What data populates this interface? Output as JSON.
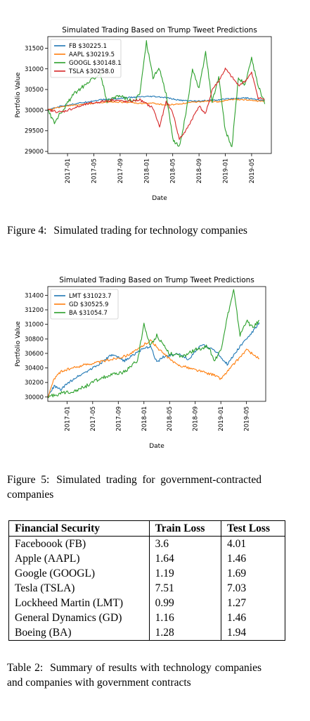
{
  "chart_data": [
    {
      "type": "line",
      "title": "Simulated Trading Based on Trump Tweet Predictions",
      "xlabel": "Date",
      "ylabel": "Portfolio Value",
      "x_ticks": [
        "2017-01",
        "2017-05",
        "2017-09",
        "2018-01",
        "2018-05",
        "2018-09",
        "2019-01",
        "2019-05"
      ],
      "y_ticks": [
        29000,
        29500,
        30000,
        30500,
        31000,
        31500
      ],
      "xlim": [
        "2016-10",
        "2019-08"
      ],
      "ylim": [
        28950,
        31780
      ],
      "legend_position": "top-left",
      "series": [
        {
          "name": "FB $30225.1",
          "color": "#1f77b4",
          "x": [
            "2016-10",
            "2016-12",
            "2017-02",
            "2017-04",
            "2017-06",
            "2017-08",
            "2017-10",
            "2017-12",
            "2018-02",
            "2018-04",
            "2018-06",
            "2018-08",
            "2018-10",
            "2018-12",
            "2019-02",
            "2019-04",
            "2019-06",
            "2019-07"
          ],
          "y": [
            30000,
            30100,
            30150,
            30200,
            30250,
            30270,
            30300,
            30320,
            30330,
            30300,
            30240,
            30220,
            30230,
            30250,
            30280,
            30300,
            30250,
            30225
          ]
        },
        {
          "name": "AAPL $30219.5",
          "color": "#ff7f0e",
          "x": [
            "2016-10",
            "2016-12",
            "2017-02",
            "2017-04",
            "2017-06",
            "2017-08",
            "2017-10",
            "2017-12",
            "2018-02",
            "2018-04",
            "2018-06",
            "2018-08",
            "2018-10",
            "2018-12",
            "2019-02",
            "2019-04",
            "2019-06",
            "2019-07"
          ],
          "y": [
            30000,
            30080,
            30120,
            30150,
            30180,
            30200,
            30190,
            30160,
            30170,
            30120,
            30150,
            30190,
            30220,
            30200,
            30260,
            30250,
            30220,
            30220
          ]
        },
        {
          "name": "GOOGL $30148.1",
          "color": "#2ca02c",
          "x": [
            "2016-10",
            "2016-11",
            "2016-12",
            "2017-02",
            "2017-04",
            "2017-06",
            "2017-07",
            "2017-09",
            "2017-11",
            "2017-12",
            "2018-01",
            "2018-02",
            "2018-03",
            "2018-04",
            "2018-05",
            "2018-06",
            "2018-07",
            "2018-08",
            "2018-09",
            "2018-10",
            "2018-11",
            "2018-12",
            "2019-01",
            "2019-02",
            "2019-03",
            "2019-04",
            "2019-05",
            "2019-06",
            "2019-07"
          ],
          "y": [
            30000,
            29700,
            29950,
            30400,
            30650,
            30900,
            30200,
            30350,
            30200,
            30400,
            31650,
            30800,
            31000,
            30400,
            29300,
            29100,
            29900,
            31000,
            30500,
            31400,
            30200,
            30800,
            29500,
            29100,
            30800,
            30600,
            31250,
            30600,
            30150
          ]
        },
        {
          "name": "TSLA $30258.0",
          "color": "#d62728",
          "x": [
            "2016-10",
            "2016-12",
            "2017-02",
            "2017-04",
            "2017-06",
            "2017-08",
            "2017-10",
            "2017-12",
            "2018-02",
            "2018-03",
            "2018-04",
            "2018-05",
            "2018-06",
            "2018-07",
            "2018-08",
            "2018-09",
            "2018-10",
            "2018-11",
            "2018-12",
            "2019-01",
            "2019-02",
            "2019-03",
            "2019-04",
            "2019-05",
            "2019-06",
            "2019-07"
          ],
          "y": [
            30000,
            29950,
            30050,
            30150,
            30200,
            30250,
            30200,
            30250,
            30050,
            29600,
            30200,
            29950,
            29300,
            29500,
            29800,
            30100,
            29900,
            30500,
            30700,
            31000,
            30800,
            30600,
            30700,
            30900,
            30300,
            30258
          ]
        }
      ]
    },
    {
      "type": "line",
      "title": "Simulated Trading Based on Trump Tweet Predictions",
      "xlabel": "Date",
      "ylabel": "Portfolio Value",
      "x_ticks": [
        "2017-01",
        "2017-05",
        "2017-09",
        "2018-01",
        "2018-05",
        "2018-09",
        "2019-01",
        "2019-05"
      ],
      "y_ticks": [
        30000,
        30200,
        30400,
        30600,
        30800,
        31000,
        31200,
        31400
      ],
      "xlim": [
        "2016-10",
        "2019-08"
      ],
      "ylim": [
        29940,
        31520
      ],
      "legend_position": "top-left",
      "series": [
        {
          "name": "LMT $31023.7",
          "color": "#1f77b4",
          "x": [
            "2016-10",
            "2016-11",
            "2016-12",
            "2017-02",
            "2017-04",
            "2017-06",
            "2017-08",
            "2017-10",
            "2017-12",
            "2018-02",
            "2018-03",
            "2018-04",
            "2018-06",
            "2018-08",
            "2018-10",
            "2018-12",
            "2019-02",
            "2019-04",
            "2019-06",
            "2019-07"
          ],
          "y": [
            30000,
            30150,
            30100,
            30250,
            30350,
            30450,
            30580,
            30500,
            30620,
            30700,
            30480,
            30550,
            30600,
            30520,
            30720,
            30650,
            30450,
            30700,
            30900,
            31024
          ]
        },
        {
          "name": "GD $30525.9",
          "color": "#ff7f0e",
          "x": [
            "2016-10",
            "2016-11",
            "2016-12",
            "2017-02",
            "2017-04",
            "2017-06",
            "2017-08",
            "2017-10",
            "2017-12",
            "2018-01",
            "2018-02",
            "2018-04",
            "2018-06",
            "2018-08",
            "2018-10",
            "2018-12",
            "2019-01",
            "2019-03",
            "2019-05",
            "2019-07"
          ],
          "y": [
            30000,
            30250,
            30350,
            30400,
            30450,
            30480,
            30520,
            30560,
            30650,
            30720,
            30780,
            30600,
            30450,
            30400,
            30350,
            30300,
            30250,
            30450,
            30650,
            30526
          ]
        },
        {
          "name": "BA $31054.7",
          "color": "#2ca02c",
          "x": [
            "2016-10",
            "2016-12",
            "2017-02",
            "2017-04",
            "2017-06",
            "2017-08",
            "2017-10",
            "2017-12",
            "2018-01",
            "2018-02",
            "2018-03",
            "2018-05",
            "2018-07",
            "2018-09",
            "2018-11",
            "2018-12",
            "2019-01",
            "2019-02",
            "2019-03",
            "2019-04",
            "2019-05",
            "2019-06",
            "2019-07"
          ],
          "y": [
            30000,
            30050,
            30080,
            30150,
            30250,
            30300,
            30350,
            30500,
            31000,
            30700,
            30850,
            30600,
            30550,
            30650,
            30700,
            30500,
            30650,
            31100,
            31470,
            30850,
            31050,
            30950,
            31055
          ]
        }
      ]
    }
  ],
  "captions": {
    "fig4_label": "Figure 4:",
    "fig4_text": "Simulated trading for technology companies",
    "fig5_label": "Figure 5:",
    "fig5_text": "Simulated trading for government-contracted companies",
    "table_label": "Table 2:",
    "table_text": "Summary of results with technology companies and companies with government contracts"
  },
  "table": {
    "headers": [
      "Financial Security",
      "Train Loss",
      "Test Loss"
    ],
    "rows": [
      [
        "Faceboook (FB)",
        "3.6",
        "4.01"
      ],
      [
        "Apple (AAPL)",
        "1.64",
        "1.46"
      ],
      [
        "Google (GOOGL)",
        "1.19",
        "1.69"
      ],
      [
        "Tesla (TSLA)",
        "7.51",
        "7.03"
      ],
      [
        "Lockheed Martin (LMT)",
        "0.99",
        "1.27"
      ],
      [
        "General Dynamics (GD)",
        "1.16",
        "1.46"
      ],
      [
        "Boeing (BA)",
        "1.28",
        "1.94"
      ]
    ]
  }
}
